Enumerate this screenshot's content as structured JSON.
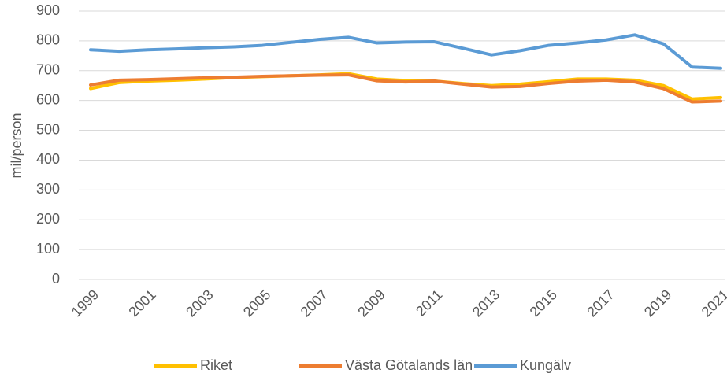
{
  "chart_data": {
    "type": "line",
    "y_label": "mil/person",
    "x": [
      1999,
      2000,
      2001,
      2002,
      2003,
      2004,
      2005,
      2006,
      2007,
      2008,
      2009,
      2010,
      2011,
      2012,
      2013,
      2014,
      2015,
      2016,
      2017,
      2018,
      2019,
      2020,
      2021
    ],
    "xlim": [
      1999,
      2021
    ],
    "xticks": [
      1999,
      2001,
      2003,
      2005,
      2007,
      2009,
      2011,
      2013,
      2015,
      2017,
      2019,
      2021
    ],
    "ylim": [
      0,
      900
    ],
    "yticks": [
      0,
      100,
      200,
      300,
      400,
      500,
      600,
      700,
      800,
      900
    ],
    "grid": true,
    "legend": "bottom",
    "series": [
      {
        "name": "Riket",
        "color": "#ffc000",
        "values": [
          640,
          660,
          665,
          668,
          672,
          677,
          680,
          683,
          686,
          690,
          672,
          667,
          665,
          657,
          650,
          655,
          663,
          672,
          672,
          668,
          650,
          605,
          610
        ]
      },
      {
        "name": "Västa Götalands län",
        "color": "#ed7d31",
        "values": [
          652,
          668,
          670,
          673,
          676,
          678,
          681,
          683,
          685,
          686,
          666,
          662,
          665,
          655,
          645,
          647,
          657,
          665,
          668,
          662,
          640,
          595,
          598
        ]
      },
      {
        "name": "Kungälv",
        "color": "#5b9bd5",
        "values": [
          770,
          765,
          770,
          773,
          777,
          780,
          785,
          795,
          805,
          812,
          793,
          796,
          797,
          775,
          753,
          767,
          785,
          793,
          803,
          820,
          790,
          712,
          708
        ]
      }
    ]
  }
}
